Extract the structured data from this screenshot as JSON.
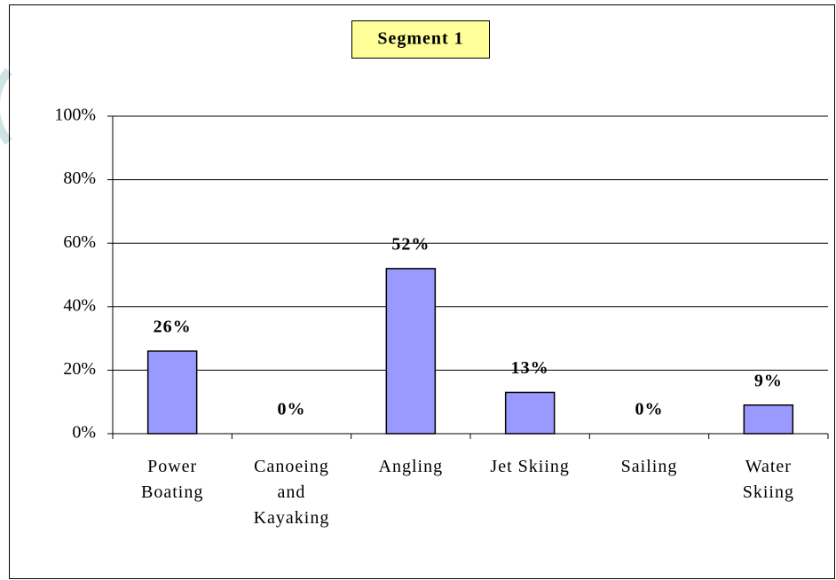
{
  "chart_data": {
    "type": "bar",
    "title": "Segment 1",
    "categories": [
      "Power Boating",
      "Canoeing and Kayaking",
      "Angling",
      "Jet Skiing",
      "Sailing",
      "Water Skiing"
    ],
    "values": [
      26,
      0,
      52,
      13,
      0,
      9
    ],
    "value_labels": [
      "26%",
      "0%",
      "52%",
      "13%",
      "0%",
      "9%"
    ],
    "color": "#9999ff",
    "ylim": [
      0,
      100
    ],
    "yticks": [
      {
        "value": 0,
        "label": "0%"
      },
      {
        "value": 20,
        "label": "20%"
      },
      {
        "value": 40,
        "label": "40%"
      },
      {
        "value": 60,
        "label": "60%"
      },
      {
        "value": 80,
        "label": "80%"
      },
      {
        "value": 100,
        "label": "100%"
      }
    ],
    "grid": true
  }
}
